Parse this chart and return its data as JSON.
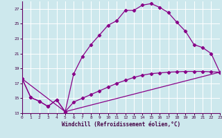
{
  "xlabel": "Windchill (Refroidissement éolien,°C)",
  "bg_color": "#cde8ed",
  "grid_color": "#ffffff",
  "line_color": "#880088",
  "xmin": 0,
  "xmax": 23,
  "ymin": 13,
  "ymax": 28,
  "yticks": [
    13,
    15,
    17,
    19,
    21,
    23,
    25,
    27
  ],
  "xticks": [
    0,
    1,
    2,
    3,
    4,
    5,
    6,
    7,
    8,
    9,
    10,
    11,
    12,
    13,
    14,
    15,
    16,
    17,
    18,
    19,
    20,
    21,
    22,
    23
  ],
  "line1_x": [
    0,
    1,
    2,
    3,
    4,
    5,
    6,
    7,
    8,
    9,
    10,
    11,
    12,
    13,
    14,
    15,
    16,
    17,
    18,
    19,
    20,
    21,
    22,
    23
  ],
  "line1_y": [
    17.6,
    15.1,
    14.6,
    13.9,
    14.8,
    13.2,
    18.3,
    20.6,
    22.2,
    23.5,
    24.8,
    25.4,
    26.8,
    26.8,
    27.5,
    27.7,
    27.2,
    26.5,
    25.2,
    24.0,
    22.2,
    21.8,
    21.0,
    18.5
  ],
  "line2_x": [
    0,
    1,
    2,
    3,
    4,
    5,
    6,
    7,
    8,
    9,
    10,
    11,
    12,
    13,
    14,
    15,
    16,
    17,
    18,
    19,
    20,
    21,
    22,
    23
  ],
  "line2_y": [
    17.6,
    15.1,
    14.6,
    13.9,
    14.8,
    13.2,
    14.5,
    15.0,
    15.5,
    16.0,
    16.5,
    17.0,
    17.4,
    17.8,
    18.1,
    18.3,
    18.4,
    18.5,
    18.55,
    18.6,
    18.6,
    18.6,
    18.55,
    18.5
  ],
  "line3_x": [
    0,
    5,
    23
  ],
  "line3_y": [
    17.6,
    13.2,
    18.5
  ]
}
